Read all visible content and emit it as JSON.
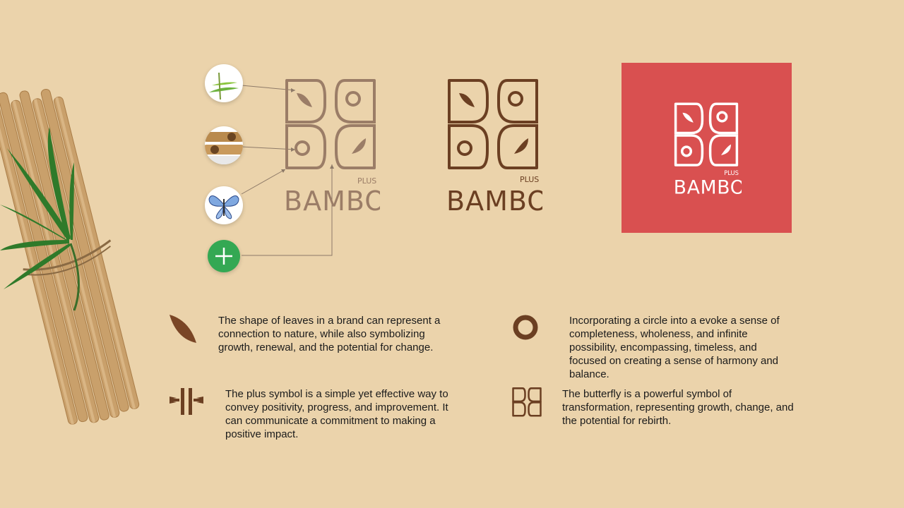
{
  "brand": {
    "name": "BAMBOO",
    "suffix": "PLUS",
    "colors": {
      "background": "#ebd3ab",
      "brown": "#6b3f22",
      "faded_brown": "#9b7d67",
      "red_panel": "#d95050",
      "white": "#ffffff",
      "green": "#34a853"
    }
  },
  "sources": [
    {
      "icon": "bamboo-leaf-photo"
    },
    {
      "icon": "bamboo-stalk-photo"
    },
    {
      "icon": "butterfly-photo"
    },
    {
      "icon": "plus-icon"
    }
  ],
  "descriptions": {
    "leaf": "The shape of leaves in a brand can represent a connection to nature, while also symbolizing growth, renewal, and the potential for change.",
    "plus": "The plus symbol is a simple yet effective way to convey positivity, progress, and improvement. It can communicate a commitment to making a positive impact.",
    "circle": "Incorporating a circle into a evoke a sense of completeness, wholeness, and infinite possibility, encompassing, timeless, and focused on creating a sense of harmony and balance.",
    "butterfly": "The butterfly is a powerful symbol of transformation, representing growth, change, and the potential for rebirth."
  }
}
